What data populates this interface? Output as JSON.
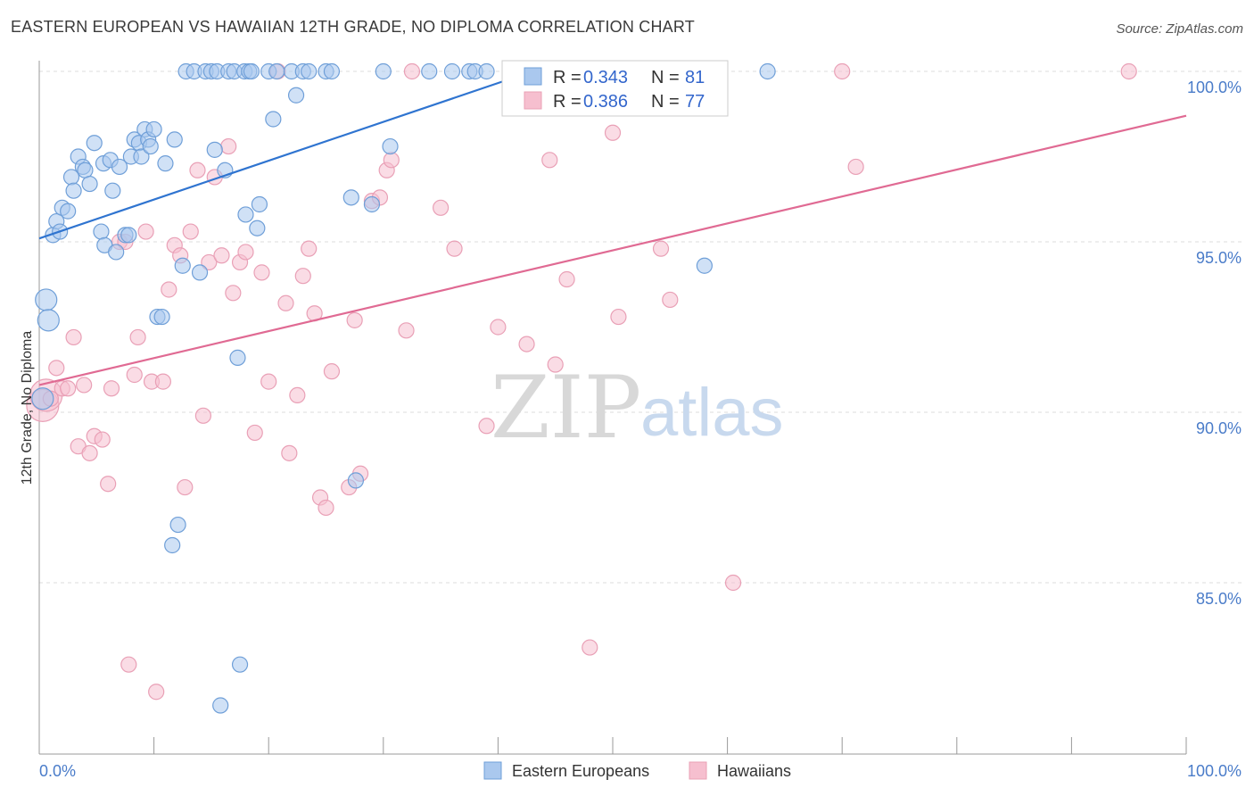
{
  "header": {
    "title": "EASTERN EUROPEAN VS HAWAIIAN 12TH GRADE, NO DIPLOMA CORRELATION CHART",
    "source": "Source: ZipAtlas.com"
  },
  "watermark": {
    "zip": "ZIP",
    "atlas": "atlas"
  },
  "colors": {
    "blue_fill": "#aac8ee",
    "blue_stroke": "#6f9fd8",
    "blue_line": "#2f74d0",
    "pink_fill": "#f6bfcf",
    "pink_stroke": "#e9a0b6",
    "pink_line": "#e06a93",
    "tick_color": "#4a7cc9"
  },
  "legend": {
    "r_label": "R = ",
    "n_label": "N = ",
    "blue": {
      "r": "0.343",
      "n": "81"
    },
    "pink": {
      "r": "0.386",
      "n": "77"
    }
  },
  "chart_data": {
    "type": "scatter",
    "title": "EASTERN EUROPEAN VS HAWAIIAN 12TH GRADE, NO DIPLOMA CORRELATION CHART",
    "xlabel": "",
    "ylabel": "12th Grade, No Diploma",
    "xlim": [
      0,
      100
    ],
    "ylim": [
      80.5,
      100.5
    ],
    "x_tick_labels": [
      "0.0%",
      "100.0%"
    ],
    "y_ticks": [
      85,
      90,
      95,
      100
    ],
    "y_tick_labels": [
      "85.0%",
      "90.0%",
      "95.0%",
      "100.0%"
    ],
    "legend_position": "top-center",
    "series": [
      {
        "name": "Eastern Europeans",
        "color": "#6f9fd8",
        "trend": {
          "x": [
            0,
            43
          ],
          "y": [
            95.1,
            100.0
          ]
        },
        "points": [
          [
            0.3,
            90.4
          ],
          [
            0.6,
            93.3
          ],
          [
            0.8,
            92.7
          ],
          [
            1.2,
            95.2
          ],
          [
            1.5,
            95.6
          ],
          [
            1.8,
            95.3
          ],
          [
            2.0,
            96.0
          ],
          [
            2.5,
            95.9
          ],
          [
            2.8,
            96.9
          ],
          [
            3.0,
            96.5
          ],
          [
            3.4,
            97.5
          ],
          [
            3.8,
            97.2
          ],
          [
            4.0,
            97.1
          ],
          [
            4.4,
            96.7
          ],
          [
            4.8,
            97.9
          ],
          [
            5.4,
            95.3
          ],
          [
            5.6,
            97.3
          ],
          [
            5.7,
            94.9
          ],
          [
            6.2,
            97.4
          ],
          [
            6.4,
            96.5
          ],
          [
            6.7,
            94.7
          ],
          [
            7.0,
            97.2
          ],
          [
            7.5,
            95.2
          ],
          [
            7.8,
            95.2
          ],
          [
            8.0,
            97.5
          ],
          [
            8.3,
            98.0
          ],
          [
            8.7,
            97.9
          ],
          [
            8.9,
            97.5
          ],
          [
            9.2,
            98.3
          ],
          [
            9.5,
            98.0
          ],
          [
            9.7,
            97.8
          ],
          [
            10.0,
            98.3
          ],
          [
            10.3,
            92.8
          ],
          [
            10.7,
            92.8
          ],
          [
            11.0,
            97.3
          ],
          [
            11.6,
            86.1
          ],
          [
            11.8,
            98.0
          ],
          [
            12.1,
            86.7
          ],
          [
            12.5,
            94.3
          ],
          [
            12.8,
            100.0
          ],
          [
            13.5,
            100.0
          ],
          [
            14.0,
            94.1
          ],
          [
            14.5,
            100.0
          ],
          [
            15.0,
            100.0
          ],
          [
            15.3,
            97.7
          ],
          [
            15.5,
            100.0
          ],
          [
            15.8,
            81.4
          ],
          [
            16.2,
            97.1
          ],
          [
            16.5,
            100.0
          ],
          [
            17.0,
            100.0
          ],
          [
            17.3,
            91.6
          ],
          [
            17.5,
            82.6
          ],
          [
            17.9,
            100.0
          ],
          [
            18.0,
            95.8
          ],
          [
            18.3,
            100.0
          ],
          [
            18.5,
            100.0
          ],
          [
            19.0,
            95.4
          ],
          [
            19.2,
            96.1
          ],
          [
            20.0,
            100.0
          ],
          [
            20.4,
            98.6
          ],
          [
            20.7,
            100.0
          ],
          [
            22.0,
            100.0
          ],
          [
            22.4,
            99.3
          ],
          [
            23.0,
            100.0
          ],
          [
            23.5,
            100.0
          ],
          [
            25.0,
            100.0
          ],
          [
            25.5,
            100.0
          ],
          [
            27.2,
            96.3
          ],
          [
            27.6,
            88.0
          ],
          [
            29.0,
            96.1
          ],
          [
            30.0,
            100.0
          ],
          [
            30.6,
            97.8
          ],
          [
            34.0,
            100.0
          ],
          [
            36.0,
            100.0
          ],
          [
            37.5,
            100.0
          ],
          [
            38.0,
            100.0
          ],
          [
            39.0,
            100.0
          ],
          [
            41.3,
            100.0
          ],
          [
            52.5,
            100.0
          ],
          [
            58.0,
            94.3
          ],
          [
            63.5,
            100.0
          ]
        ]
      },
      {
        "name": "Hawaiians",
        "color": "#e9a0b6",
        "trend": {
          "x": [
            0,
            100
          ],
          "y": [
            90.8,
            98.7
          ]
        },
        "points": [
          [
            0.3,
            90.2
          ],
          [
            0.6,
            90.5
          ],
          [
            1.0,
            90.4
          ],
          [
            1.5,
            91.3
          ],
          [
            2.0,
            90.7
          ],
          [
            2.5,
            90.7
          ],
          [
            3.0,
            92.2
          ],
          [
            3.4,
            89.0
          ],
          [
            3.9,
            90.8
          ],
          [
            4.4,
            88.8
          ],
          [
            4.8,
            89.3
          ],
          [
            5.5,
            89.2
          ],
          [
            6.0,
            87.9
          ],
          [
            6.3,
            90.7
          ],
          [
            7.0,
            95.0
          ],
          [
            7.5,
            95.0
          ],
          [
            7.8,
            82.6
          ],
          [
            8.3,
            91.1
          ],
          [
            8.6,
            92.2
          ],
          [
            9.3,
            95.3
          ],
          [
            9.8,
            90.9
          ],
          [
            10.2,
            81.8
          ],
          [
            10.8,
            90.9
          ],
          [
            11.3,
            93.6
          ],
          [
            11.8,
            94.9
          ],
          [
            12.3,
            94.6
          ],
          [
            12.7,
            87.8
          ],
          [
            13.2,
            95.3
          ],
          [
            13.8,
            97.1
          ],
          [
            14.3,
            89.9
          ],
          [
            14.8,
            94.4
          ],
          [
            15.3,
            96.9
          ],
          [
            15.9,
            94.6
          ],
          [
            16.5,
            97.8
          ],
          [
            16.9,
            93.5
          ],
          [
            17.5,
            94.4
          ],
          [
            18.0,
            94.7
          ],
          [
            18.8,
            89.4
          ],
          [
            19.4,
            94.1
          ],
          [
            20.0,
            90.9
          ],
          [
            20.8,
            100.0
          ],
          [
            21.5,
            93.2
          ],
          [
            21.8,
            88.8
          ],
          [
            22.5,
            90.5
          ],
          [
            23.0,
            94.0
          ],
          [
            23.5,
            94.8
          ],
          [
            24.0,
            92.9
          ],
          [
            24.5,
            87.5
          ],
          [
            25.0,
            87.2
          ],
          [
            25.5,
            91.2
          ],
          [
            27.0,
            87.8
          ],
          [
            27.5,
            92.7
          ],
          [
            28.0,
            88.2
          ],
          [
            29.0,
            96.2
          ],
          [
            29.7,
            96.3
          ],
          [
            30.3,
            97.1
          ],
          [
            30.7,
            97.4
          ],
          [
            32.0,
            92.4
          ],
          [
            32.5,
            100.0
          ],
          [
            35.0,
            96.0
          ],
          [
            36.2,
            94.8
          ],
          [
            39.0,
            89.6
          ],
          [
            40.0,
            92.5
          ],
          [
            42.5,
            92.0
          ],
          [
            44.5,
            97.4
          ],
          [
            45.0,
            91.4
          ],
          [
            46.0,
            93.9
          ],
          [
            48.0,
            83.1
          ],
          [
            49.0,
            100.0
          ],
          [
            50.0,
            98.2
          ],
          [
            50.5,
            92.8
          ],
          [
            54.2,
            94.8
          ],
          [
            55.0,
            93.3
          ],
          [
            60.5,
            85.0
          ],
          [
            70.0,
            100.0
          ],
          [
            71.2,
            97.2
          ],
          [
            95.0,
            100.0
          ]
        ]
      }
    ]
  }
}
